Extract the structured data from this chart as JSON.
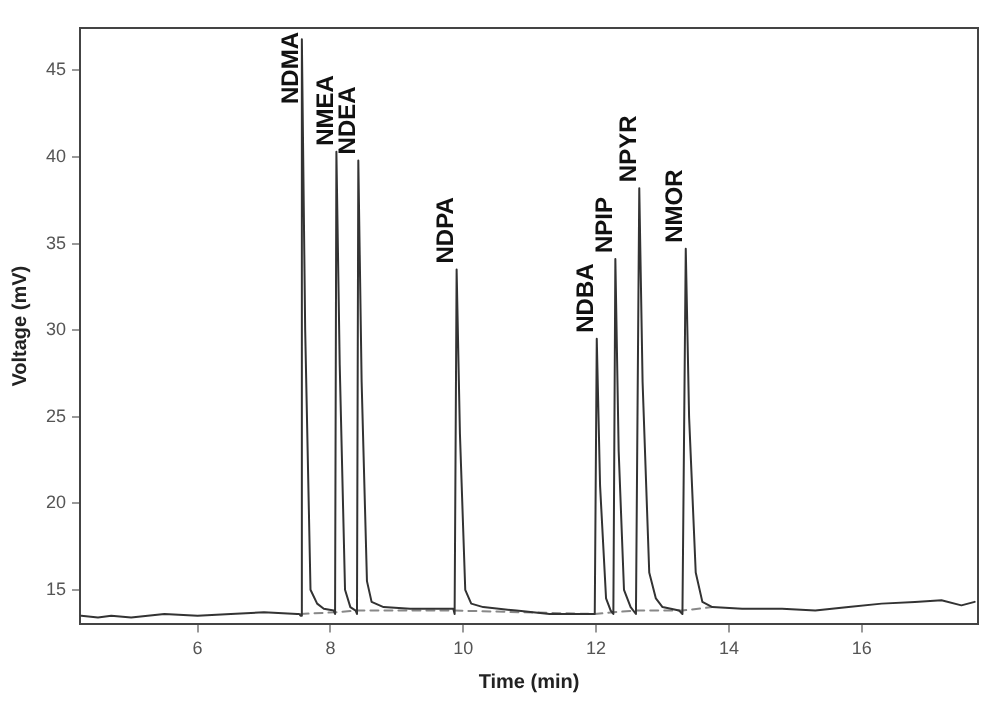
{
  "chart_data": {
    "type": "line",
    "xlabel": "Time (min)",
    "ylabel": "Voltage (mV)",
    "xlim": [
      4.23,
      17.75
    ],
    "xticks": [
      6,
      8,
      10,
      12,
      14,
      16
    ],
    "ylim": [
      13.0,
      47.45
    ],
    "yticks": [
      15,
      20,
      25,
      30,
      35,
      40,
      45
    ],
    "grid": false,
    "legend": false,
    "marker": "none",
    "series": [
      {
        "color": "#333333",
        "line_style": "solid",
        "x": [
          4.25,
          4.5,
          4.7,
          5.0,
          5.5,
          6.0,
          6.5,
          7.0,
          7.5,
          7.53,
          7.55,
          7.57,
          7.62,
          7.7,
          7.8,
          7.9,
          8.05,
          8.07,
          8.09,
          8.14,
          8.22,
          8.3,
          8.38,
          8.4,
          8.42,
          8.47,
          8.55,
          8.62,
          8.8,
          9.2,
          9.6,
          9.85,
          9.87,
          9.9,
          9.95,
          10.03,
          10.12,
          10.3,
          10.8,
          11.3,
          11.9,
          11.98,
          12.01,
          12.06,
          12.15,
          12.22,
          12.26,
          12.29,
          12.34,
          12.42,
          12.52,
          12.6,
          12.65,
          12.7,
          12.8,
          12.9,
          13.0,
          13.25,
          13.3,
          13.35,
          13.4,
          13.5,
          13.6,
          13.75,
          14.2,
          14.8,
          15.3,
          15.8,
          16.3,
          16.8,
          17.2,
          17.5,
          17.7
        ],
        "values": [
          13.5,
          13.4,
          13.5,
          13.4,
          13.6,
          13.5,
          13.6,
          13.7,
          13.6,
          13.6,
          13.5,
          46.8,
          30,
          15,
          14.2,
          13.9,
          13.8,
          13.6,
          40.3,
          28,
          15,
          14.0,
          13.8,
          13.6,
          39.8,
          27,
          15.5,
          14.3,
          14.0,
          13.9,
          13.9,
          13.9,
          13.6,
          33.5,
          24,
          15,
          14.2,
          14.0,
          13.8,
          13.6,
          13.6,
          13.6,
          29.5,
          21,
          14.5,
          13.8,
          13.6,
          34.1,
          23,
          15,
          14.0,
          13.6,
          38.2,
          27,
          16,
          14.5,
          14.0,
          13.8,
          13.6,
          34.7,
          25,
          16,
          14.3,
          14.0,
          13.9,
          13.9,
          13.8,
          14.0,
          14.2,
          14.3,
          14.4,
          14.1,
          14.3
        ]
      },
      {
        "color": "#888888",
        "line_style": "dashed",
        "x": [
          7.55,
          8.07,
          8.4,
          9.87,
          11.98,
          12.26,
          12.6,
          13.3,
          13.75
        ],
        "values": [
          13.6,
          13.7,
          13.8,
          13.8,
          13.6,
          13.7,
          13.8,
          13.8,
          14.0
        ]
      }
    ],
    "annotations": [
      {
        "text": "NDMA",
        "x": 7.57,
        "y": 46.8
      },
      {
        "text": "NMEA",
        "x": 8.09,
        "y": 40.3
      },
      {
        "text": "NDEA",
        "x": 8.42,
        "y": 39.8
      },
      {
        "text": "NDPA",
        "x": 9.9,
        "y": 33.5
      },
      {
        "text": "NDBA",
        "x": 12.01,
        "y": 29.5
      },
      {
        "text": "NPIP",
        "x": 12.29,
        "y": 34.1
      },
      {
        "text": "NPYR",
        "x": 12.65,
        "y": 38.2
      },
      {
        "text": "NMOR",
        "x": 13.35,
        "y": 34.7
      }
    ]
  }
}
